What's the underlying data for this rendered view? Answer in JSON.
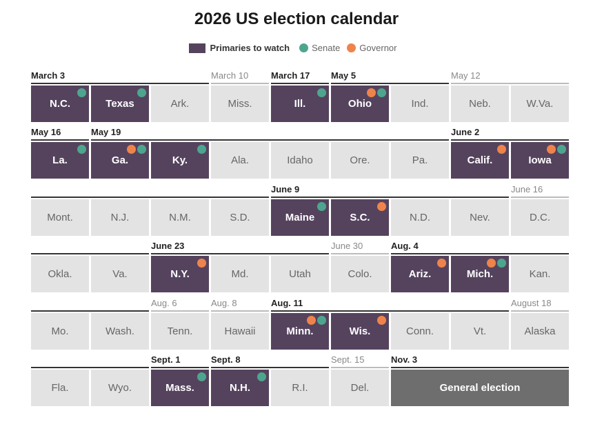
{
  "title": "2026 US election calendar",
  "legend": {
    "primaries": "Primaries to watch",
    "senate": "Senate",
    "governor": "Governor",
    "colors": {
      "watch": "#55435e",
      "senate": "#4ea58e",
      "governor": "#ee844b",
      "general": "#6e6e6e"
    }
  },
  "date_labels": [
    "March 3",
    "March 10",
    "March 17",
    "May 5",
    "May 12",
    "May 16",
    "May 19",
    "June 2",
    "June 9",
    "June 16",
    "June 23",
    "June 30",
    "Aug. 4",
    "Aug. 6",
    "Aug. 8",
    "Aug. 11",
    "August 18",
    "Sept. 1",
    "Sept. 8",
    "Sept. 15",
    "Nov. 3"
  ],
  "cells": [
    "N.C.",
    "Texas",
    "Ark.",
    "Miss.",
    "Ill.",
    "Ohio",
    "Ind.",
    "Neb.",
    "W.Va.",
    "La.",
    "Ga.",
    "Ky.",
    "Ala.",
    "Idaho",
    "Ore.",
    "Pa.",
    "Calif.",
    "Iowa",
    "Mont.",
    "N.J.",
    "N.M.",
    "S.D.",
    "Maine",
    "S.C.",
    "N.D.",
    "Nev.",
    "D.C.",
    "Okla.",
    "Va.",
    "N.Y.",
    "Md.",
    "Utah",
    "Colo.",
    "Ariz.",
    "Mich.",
    "Kan.",
    "Mo.",
    "Wash.",
    "Tenn.",
    "Hawaii",
    "Minn.",
    "Wis.",
    "Conn.",
    "Vt.",
    "Alaska",
    "Fla.",
    "Wyo.",
    "Mass.",
    "N.H.",
    "R.I.",
    "Del.",
    "General election"
  ]
}
